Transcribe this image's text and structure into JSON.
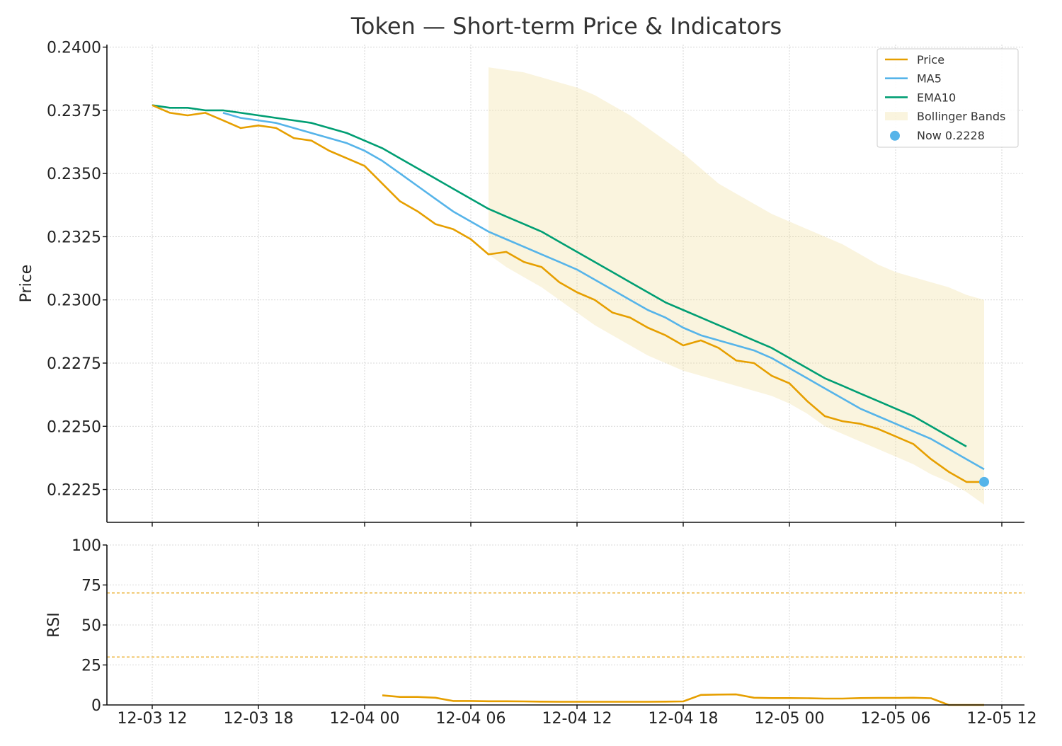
{
  "chart_data": [
    {
      "type": "line",
      "title": "Token — Short-term Price & Indicators",
      "ylabel": "Price",
      "xlabel": "",
      "ylim": [
        0.2212,
        0.2401
      ],
      "y_ticks": [
        "0.2225",
        "0.2250",
        "0.2275",
        "0.2300",
        "0.2325",
        "0.2350",
        "0.2375",
        "0.2400"
      ],
      "x_ticks": [
        "12-03 12",
        "12-03 18",
        "12-04 00",
        "12-04 06",
        "12-04 12",
        "12-04 18",
        "12-05 00",
        "12-05 06",
        "12-05 12"
      ],
      "x_start": "12-03 12",
      "x_step": "1 hour",
      "x_step_hours": 1,
      "grid": true,
      "legend_position": "top-right",
      "series": [
        {
          "name": "Price",
          "color": "#E69F00",
          "start_index": 0,
          "values": [
            0.2377,
            0.2374,
            0.2373,
            0.2374,
            0.2371,
            0.2368,
            0.2369,
            0.2368,
            0.2364,
            0.2363,
            0.2359,
            0.2356,
            0.2353,
            0.2346,
            0.2339,
            0.2335,
            0.233,
            0.2328,
            0.2324,
            0.2318,
            0.2319,
            0.2315,
            0.2313,
            0.2307,
            0.2303,
            0.23,
            0.2295,
            0.2293,
            0.2289,
            0.2286,
            0.2282,
            0.2284,
            0.2281,
            0.2276,
            0.2275,
            0.227,
            0.2267,
            0.226,
            0.2254,
            0.2252,
            0.2251,
            0.2249,
            0.2246,
            0.2243,
            0.2237,
            0.2232,
            0.2228,
            0.2228
          ]
        },
        {
          "name": "MA5",
          "color": "#56B4E9",
          "start_index": 4,
          "values": [
            0.2374,
            0.2372,
            0.2371,
            0.237,
            0.2368,
            0.2366,
            0.2364,
            0.2362,
            0.2359,
            0.2355,
            0.235,
            0.2345,
            0.234,
            0.2335,
            0.2331,
            0.2327,
            0.2324,
            0.2321,
            0.2318,
            0.2315,
            0.2312,
            0.2308,
            0.2304,
            0.23,
            0.2296,
            0.2293,
            0.2289,
            0.2286,
            0.2284,
            0.2282,
            0.228,
            0.2277,
            0.2273,
            0.2269,
            0.2265,
            0.2261,
            0.2257,
            0.2254,
            0.2251,
            0.2248,
            0.2245,
            0.2241,
            0.2237,
            0.2233
          ]
        },
        {
          "name": "EMA10",
          "color": "#009E73",
          "start_index": 0,
          "values": [
            0.2377,
            0.2376,
            0.2376,
            0.2375,
            0.2375,
            0.2374,
            0.2373,
            0.2372,
            0.2371,
            0.237,
            0.2368,
            0.2366,
            0.2363,
            0.236,
            0.2356,
            0.2352,
            0.2348,
            0.2344,
            0.234,
            0.2336,
            0.2333,
            0.233,
            0.2327,
            0.2323,
            0.2319,
            0.2315,
            0.2311,
            0.2307,
            0.2303,
            0.2299,
            0.2296,
            0.2293,
            0.229,
            0.2287,
            0.2284,
            0.2281,
            0.2277,
            0.2273,
            0.2269,
            0.2266,
            0.2263,
            0.226,
            0.2257,
            0.2254,
            0.225,
            0.2246,
            0.2242
          ]
        }
      ],
      "bollinger_bands": {
        "name": "Bollinger Bands",
        "color": "#F0E0A0",
        "start_index": 19,
        "upper": [
          0.2392,
          0.2391,
          0.239,
          0.2388,
          0.2386,
          0.2384,
          0.2381,
          0.2377,
          0.2373,
          0.2368,
          0.2363,
          0.2358,
          0.2352,
          0.2346,
          0.2342,
          0.2338,
          0.2334,
          0.2331,
          0.2328,
          0.2325,
          0.2322,
          0.2318,
          0.2314,
          0.2311,
          0.2309,
          0.2307,
          0.2305,
          0.2302,
          0.23
        ],
        "lower": [
          0.2318,
          0.2313,
          0.2309,
          0.2305,
          0.23,
          0.2295,
          0.229,
          0.2286,
          0.2282,
          0.2278,
          0.2275,
          0.2272,
          0.227,
          0.2268,
          0.2266,
          0.2264,
          0.2262,
          0.2259,
          0.2255,
          0.225,
          0.2247,
          0.2244,
          0.2241,
          0.2238,
          0.2235,
          0.2231,
          0.2228,
          0.2224,
          0.2219
        ]
      },
      "now_marker": {
        "label": "Now 0.2228",
        "index": 47,
        "value": 0.2228,
        "color": "#56B4E9"
      }
    },
    {
      "type": "line",
      "title": "",
      "ylabel": "RSI",
      "xlabel": "",
      "ylim": [
        0,
        100
      ],
      "y_ticks": [
        "0",
        "25",
        "50",
        "75",
        "100"
      ],
      "reference_lines": [
        {
          "value": 70,
          "color": "#E69F00"
        },
        {
          "value": 30,
          "color": "#E69F00"
        }
      ],
      "grid": true,
      "series": [
        {
          "name": "RSI",
          "color": "#E69F00",
          "start_index": 13,
          "values": [
            6.0,
            5.0,
            5.0,
            4.5,
            2.5,
            2.5,
            2.3,
            2.3,
            2.2,
            2.1,
            2.0,
            2.0,
            2.0,
            2.0,
            2.0,
            2.0,
            2.1,
            2.2,
            6.3,
            6.5,
            6.6,
            4.5,
            4.3,
            4.3,
            4.2,
            4.0,
            4.0,
            4.3,
            4.4,
            4.4,
            4.5,
            4.2,
            0.0,
            0.0,
            0.0
          ]
        }
      ]
    }
  ]
}
